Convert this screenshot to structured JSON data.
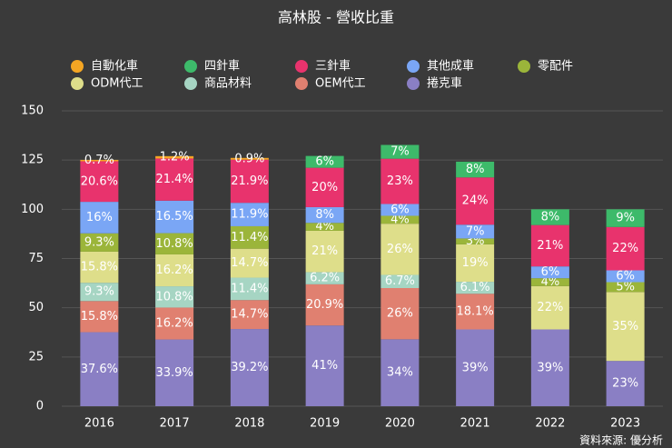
{
  "chart_data": {
    "type": "stacked_bar",
    "title": "高林股 - 營收比重",
    "source": "資料來源: 優分析",
    "categories": [
      "2016",
      "2017",
      "2018",
      "2019",
      "2020",
      "2021",
      "2022",
      "2023"
    ],
    "ylim": [
      0,
      150
    ],
    "yticks": [
      0,
      25,
      50,
      75,
      100,
      125,
      150
    ],
    "grid": true,
    "series": [
      {
        "name": "捲克車",
        "color": "#8a7fc4",
        "values": [
          37.6,
          33.9,
          39.2,
          41,
          34,
          39,
          39,
          23
        ],
        "value_labels": [
          "37.6%",
          "33.9%",
          "39.2%",
          "41%",
          "34%",
          "39%",
          "39%",
          "23%"
        ]
      },
      {
        "name": "OEM代工",
        "color": "#e08070",
        "values": [
          15.8,
          16.2,
          14.7,
          20.9,
          26,
          18.1,
          null,
          null
        ],
        "value_labels": [
          "15.8%",
          "16.2%",
          "14.7%",
          "20.9%",
          "26%",
          "18.1%",
          null,
          null
        ]
      },
      {
        "name": "商品材料",
        "color": "#a6d5c3",
        "values": [
          9.3,
          10.8,
          11.4,
          6.2,
          6.7,
          6.1,
          null,
          null
        ],
        "value_labels": [
          "9.3%",
          "10.8%",
          "11.4%",
          "6.2%",
          "6.7%",
          "6.1%",
          null,
          null
        ]
      },
      {
        "name": "ODM代工",
        "color": "#dede8a",
        "values": [
          15.8,
          16.2,
          14.7,
          21,
          26,
          19,
          22,
          35
        ],
        "value_labels": [
          "15.8%",
          "16.2%",
          "14.7%",
          "21%",
          "26%",
          "19%",
          "22%",
          "35%"
        ]
      },
      {
        "name": "零配件",
        "color": "#9bb53a",
        "values": [
          9.3,
          10.8,
          11.4,
          4,
          4,
          3,
          4,
          5
        ],
        "value_labels": [
          "9.3%",
          "10.8%",
          "11.4%",
          "4%",
          "4%",
          "3%",
          "4%",
          "5%"
        ]
      },
      {
        "name": "其他成車",
        "color": "#7aa6f5",
        "values": [
          16,
          16.5,
          11.9,
          8,
          6,
          7,
          6,
          6
        ],
        "value_labels": [
          "16%",
          "16.5%",
          "11.9%",
          "8%",
          "6%",
          "7%",
          "6%",
          "6%"
        ]
      },
      {
        "name": "三針車",
        "color": "#e8336d",
        "values": [
          20.6,
          21.4,
          21.9,
          20,
          23,
          24,
          21,
          22
        ],
        "value_labels": [
          "20.6%",
          "21.4%",
          "21.9%",
          "20%",
          "23%",
          "24%",
          "21%",
          "22%"
        ]
      },
      {
        "name": "四針車",
        "color": "#3dba6a",
        "values": [
          null,
          null,
          null,
          6,
          7,
          8,
          8,
          9
        ],
        "value_labels": [
          null,
          null,
          null,
          "6%",
          "7%",
          "8%",
          "8%",
          "9%"
        ]
      },
      {
        "name": "自動化車",
        "color": "#f5a623",
        "values": [
          0.7,
          1.2,
          0.9,
          null,
          null,
          null,
          null,
          null
        ],
        "value_labels": [
          "0.7%",
          "1.2%",
          "0.9%",
          null,
          null,
          null,
          null,
          null
        ]
      }
    ]
  }
}
